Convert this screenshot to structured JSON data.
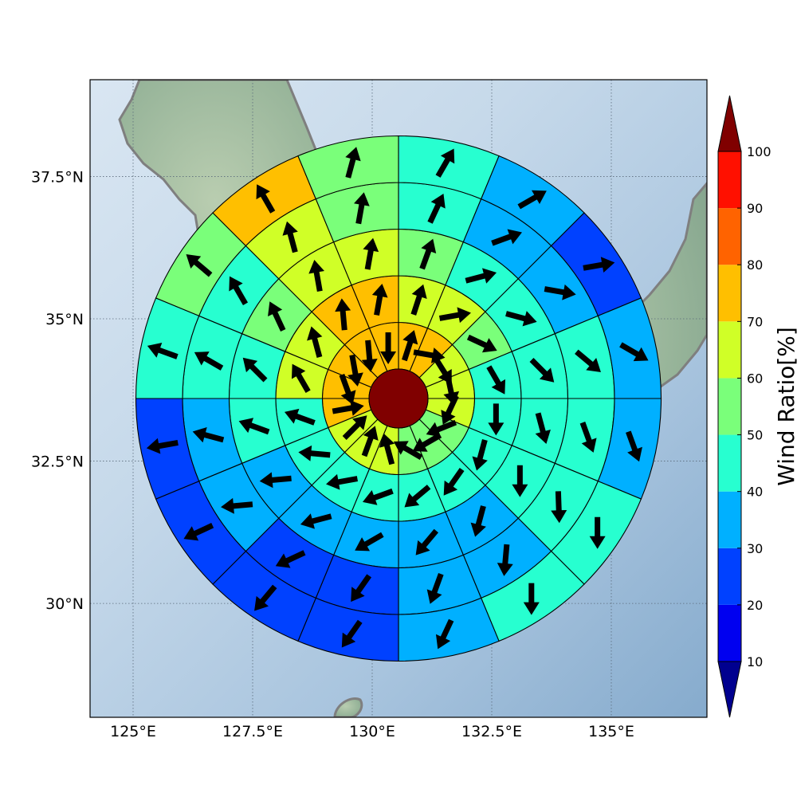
{
  "chart_data": {
    "type": "polar-sector-map",
    "title": "",
    "x_axis": {
      "range": [
        124.1,
        137.0
      ],
      "ticks": [
        125,
        127.5,
        130,
        132.5,
        135
      ],
      "tick_labels": [
        "125°E",
        "127.5°E",
        "130°E",
        "132.5°E",
        "135°E"
      ]
    },
    "y_axis": {
      "range": [
        28.0,
        39.2
      ],
      "ticks": [
        30,
        32.5,
        35,
        37.5
      ],
      "tick_labels": [
        "30°N",
        "32.5°N",
        "35°N",
        "37.5°N"
      ]
    },
    "grid": true,
    "center": {
      "lon": 130.5,
      "lat": 33.6
    },
    "center_value": 100,
    "rings": 5,
    "sectors_per_ring": 16,
    "sector_order": "clockwise from north (index 0 = N to NNE)",
    "ring_values": [
      [
        72,
        72,
        66,
        62,
        62,
        58,
        55,
        55,
        66,
        66,
        66,
        72,
        72,
        72,
        72,
        72
      ],
      [
        66,
        62,
        57,
        47,
        47,
        47,
        45,
        45,
        45,
        46,
        47,
        48,
        62,
        66,
        72,
        72
      ],
      [
        55,
        48,
        48,
        44,
        44,
        44,
        34,
        34,
        34,
        34,
        34,
        44,
        46,
        55,
        62,
        62
      ],
      [
        48,
        35,
        34,
        44,
        44,
        44,
        34,
        30,
        24,
        24,
        30,
        34,
        44,
        48,
        62,
        57
      ],
      [
        45,
        34,
        22,
        34,
        34,
        44,
        40,
        34,
        24,
        24,
        22,
        22,
        46,
        55,
        72,
        55
      ]
    ],
    "wind_direction_deg": [
      [
        18,
        100,
        148,
        168,
        205,
        248,
        240,
        300,
        345,
        20,
        45,
        80,
        160,
        170,
        175,
        180
      ],
      [
        18,
        80,
        115,
        150,
        180,
        195,
        215,
        230,
        250,
        260,
        275,
        290,
        330,
        345,
        355,
        10
      ],
      [
        20,
        75,
        105,
        135,
        165,
        180,
        195,
        220,
        240,
        255,
        265,
        290,
        315,
        335,
        350,
        10
      ],
      [
        25,
        70,
        100,
        130,
        160,
        178,
        185,
        200,
        215,
        245,
        265,
        285,
        300,
        330,
        345,
        10
      ],
      [
        30,
        60,
        80,
        120,
        160,
        180,
        180,
        205,
        215,
        220,
        245,
        260,
        290,
        310,
        330,
        15
      ]
    ],
    "colorbar": {
      "label": "Wind Ratio[%]",
      "tick_labels": [
        "10",
        "20",
        "30",
        "40",
        "50",
        "60",
        "70",
        "80",
        "90",
        "100"
      ],
      "bounds": [
        10,
        20,
        30,
        40,
        50,
        60,
        70,
        80,
        90,
        100
      ],
      "colors": [
        "#0000f0",
        "#0041ff",
        "#00b0ff",
        "#27ffd0",
        "#7aff7a",
        "#d0ff27",
        "#ffbf00",
        "#ff6300",
        "#ff1000"
      ],
      "under_color": "#00008f",
      "over_color": "#800000"
    }
  }
}
